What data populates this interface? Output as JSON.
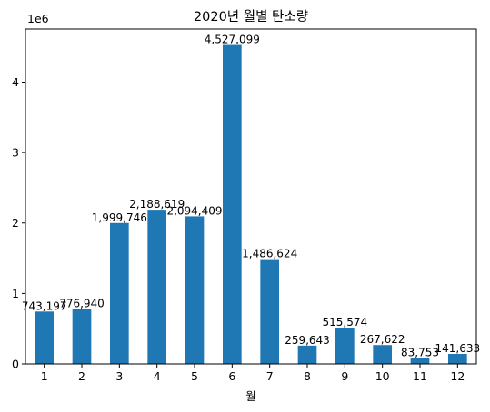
{
  "chart_data": {
    "type": "bar",
    "title": "2020년 월별 탄소량",
    "xlabel": "월",
    "ylabel": "",
    "offset_label": "1e6",
    "categories": [
      "1",
      "2",
      "3",
      "4",
      "5",
      "6",
      "7",
      "8",
      "9",
      "10",
      "11",
      "12"
    ],
    "values": [
      743197,
      776940,
      1999746,
      2188619,
      2094409,
      4527099,
      1486624,
      259643,
      515574,
      267622,
      83753,
      141633
    ],
    "value_labels": [
      "743,197",
      "776,940",
      "1,999,746",
      "2,188,619",
      "2,094,409",
      "4,527,099",
      "1,486,624",
      "259,643",
      "515,574",
      "267,622",
      "83,753",
      "141,633"
    ],
    "ylim": [
      0,
      4753454
    ],
    "yticks": [
      0,
      1000000,
      2000000,
      3000000,
      4000000
    ],
    "ytick_labels": [
      "0",
      "1",
      "2",
      "3",
      "4"
    ],
    "bar_color": "#1f77b4",
    "grid": false,
    "legend": "none"
  }
}
